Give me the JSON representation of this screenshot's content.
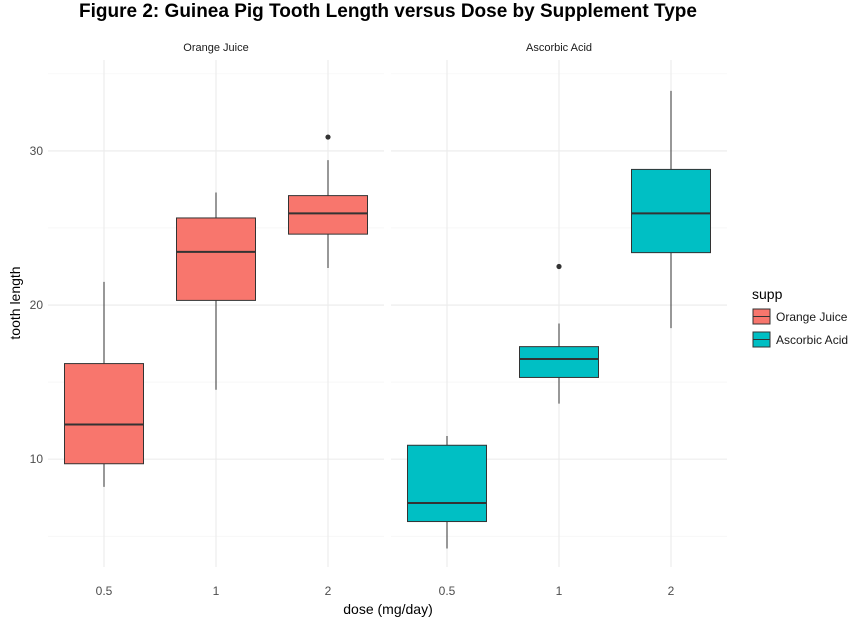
{
  "chart_data": {
    "type": "boxplot",
    "title": "Figure 2: Guinea Pig Tooth Length versus Dose by Supplement Type",
    "xlabel": "dose (mg/day)",
    "ylabel": "tooth length",
    "categories": [
      "0.5",
      "1",
      "2"
    ],
    "y_ticks": [
      10,
      20,
      30
    ],
    "ylim": [
      3.0,
      35.9
    ],
    "grid": true,
    "legend": {
      "title": "supp",
      "position": "right",
      "items": [
        {
          "label": "Orange Juice",
          "color": "#F8766D"
        },
        {
          "label": "Ascorbic Acid",
          "color": "#00BFC4"
        }
      ]
    },
    "facets": [
      {
        "label": "Orange Juice",
        "color": "#F8766D",
        "boxes": [
          {
            "dose": "0.5",
            "whisker_low": 8.2,
            "q1": 9.7,
            "median": 12.25,
            "q3": 16.2,
            "whisker_high": 21.5,
            "outliers": []
          },
          {
            "dose": "1",
            "whisker_low": 14.5,
            "q1": 20.3,
            "median": 23.45,
            "q3": 25.65,
            "whisker_high": 27.3,
            "outliers": []
          },
          {
            "dose": "2",
            "whisker_low": 22.4,
            "q1": 24.6,
            "median": 25.95,
            "q3": 27.1,
            "whisker_high": 29.4,
            "outliers": [
              30.9
            ]
          }
        ]
      },
      {
        "label": "Ascorbic Acid",
        "color": "#00BFC4",
        "boxes": [
          {
            "dose": "0.5",
            "whisker_low": 4.2,
            "q1": 5.95,
            "median": 7.15,
            "q3": 10.9,
            "whisker_high": 11.5,
            "outliers": []
          },
          {
            "dose": "1",
            "whisker_low": 13.6,
            "q1": 15.3,
            "median": 16.5,
            "q3": 17.3,
            "whisker_high": 18.8,
            "outliers": [
              22.5
            ]
          },
          {
            "dose": "2",
            "whisker_low": 18.5,
            "q1": 23.4,
            "median": 25.95,
            "q3": 28.8,
            "whisker_high": 33.9,
            "outliers": []
          }
        ]
      }
    ]
  }
}
